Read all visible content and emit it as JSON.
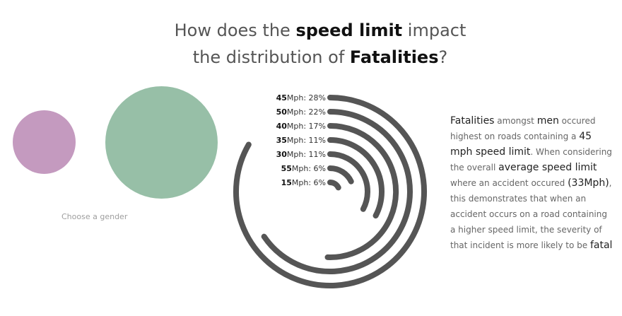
{
  "title": {
    "part1": "How does the ",
    "emph1": "speed limit",
    "part2": " impact",
    "part3": "the distribution of ",
    "emph2": "Fatalities",
    "part4": "?"
  },
  "gender_filter": {
    "label": "Choose a gender",
    "female_color": "#c49abf",
    "male_color": "#97bfa7"
  },
  "chart_data": {
    "type": "radial-bar",
    "title": "How does the speed limit impact the distribution of Fatalities?",
    "unit": "Mph",
    "max_percent": 28,
    "categories": [
      "45",
      "50",
      "40",
      "35",
      "30",
      "55",
      "15"
    ],
    "values": [
      28,
      22,
      17,
      11,
      11,
      6,
      6
    ],
    "labels": [
      {
        "speed": "45",
        "rest": "Mph: 28%"
      },
      {
        "speed": "50",
        "rest": "Mph: 22%"
      },
      {
        "speed": "40",
        "rest": "Mph: 17%"
      },
      {
        "speed": "35",
        "rest": "Mph: 11%"
      },
      {
        "speed": "30",
        "rest": "Mph: 11%"
      },
      {
        "speed": "55",
        "rest": "Mph: 6%"
      },
      {
        "speed": "15",
        "rest": "Mph: 6%"
      }
    ],
    "bar_color": "#555555"
  },
  "annotation": {
    "t1": "Fatalities",
    "t2": " amongst ",
    "t3": "men",
    "t4": " occured highest on roads containing a ",
    "t5": "45 mph speed limit",
    "t6": ". When considering the overall ",
    "t7": "average speed limit",
    "t8": " where an accident occured ",
    "t9": "(33Mph)",
    "t10": ", this demonstrates that when an accident occurs on a road containing a higher speed limit, the severity of that incident is more likely to be ",
    "t11": "fatal"
  }
}
